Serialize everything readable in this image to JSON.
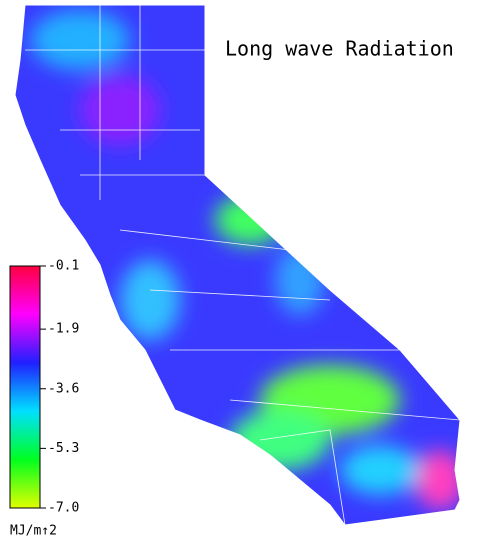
{
  "title": "Long wave Radiation",
  "colorbar": {
    "lim": [
      -7,
      -0.1
    ],
    "ticks": [
      -0.1,
      -1.9,
      -3.6,
      -5.3,
      {
        "value": -7,
        "label": "-7.0"
      }
    ],
    "colors": [
      "#ff0040",
      "#ff00ff",
      "#2020ff",
      "#00e0ff",
      "#00ff20",
      "#e0ff00"
    ],
    "unit": "MJ/m↑2"
  }
}
